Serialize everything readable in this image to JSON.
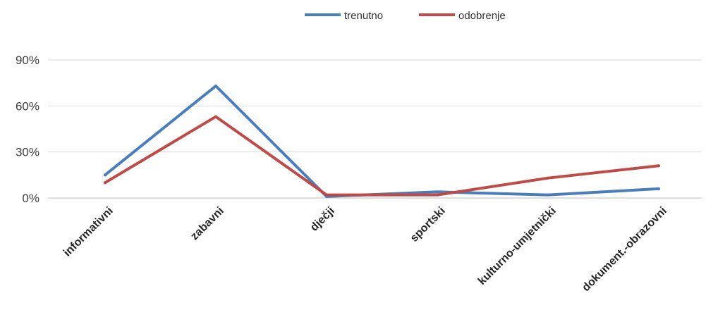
{
  "chart_data": {
    "type": "line",
    "categories": [
      "informativni",
      "zabavni",
      "dječji",
      "sportski",
      "kulturno-umjetnički",
      "dokument.-obrazovni"
    ],
    "series": [
      {
        "name": "trenutno",
        "values": [
          15,
          73,
          1,
          4,
          2,
          6
        ],
        "color": "#4a7ebb"
      },
      {
        "name": "odobrenje",
        "values": [
          10,
          53,
          2,
          2,
          13,
          21
        ],
        "color": "#be4b48"
      }
    ],
    "yticks": [
      "0%",
      "30%",
      "60%",
      "90%"
    ],
    "ytick_values": [
      0,
      30,
      60,
      90
    ],
    "ylim": [
      0,
      90
    ],
    "grid": true,
    "legend": "top-center"
  }
}
